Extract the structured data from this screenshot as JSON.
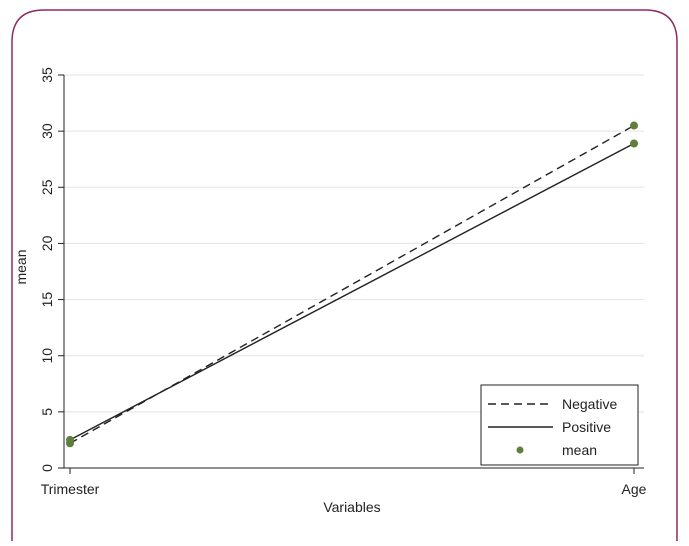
{
  "chart_data": {
    "type": "line",
    "categories": [
      "Trimester",
      "Age"
    ],
    "xlabel": "Variables",
    "ylabel": "mean",
    "ylim": [
      0,
      35
    ],
    "yticks": [
      0,
      5,
      10,
      15,
      20,
      25,
      30,
      35
    ],
    "grid": true,
    "legend_position": "bottom-right",
    "series": [
      {
        "name": "Negative",
        "style": "dashed",
        "values": [
          2.2,
          30.5
        ]
      },
      {
        "name": "Positive",
        "style": "solid",
        "values": [
          2.5,
          28.9
        ]
      }
    ],
    "markers_label": "mean",
    "marker_color": "#5f7f3f",
    "line_color": "#222222",
    "frame_color": "#8f2a5e"
  }
}
